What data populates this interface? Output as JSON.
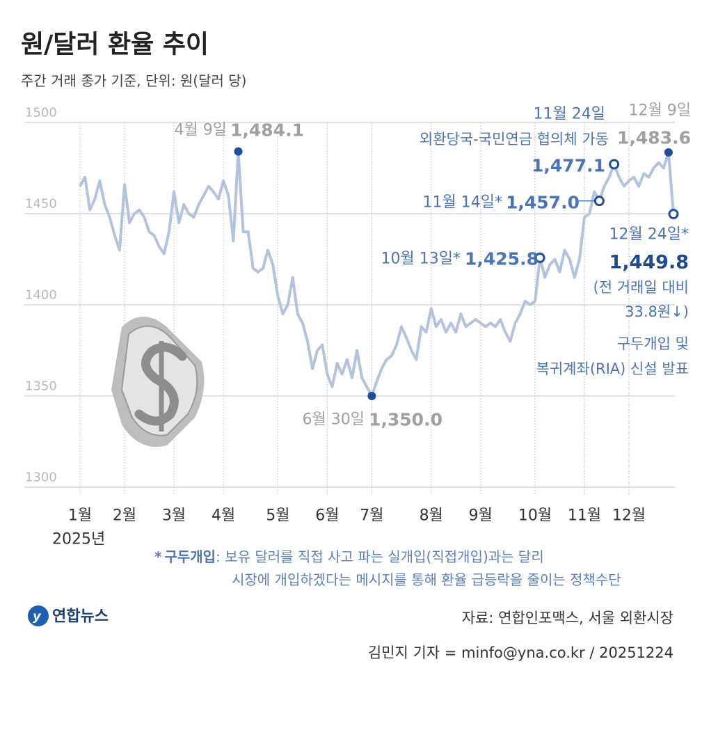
{
  "chart_data": {
    "type": "line",
    "title": "원/달러 환율 추이",
    "subtitle": "주간 거래 종가 기준, 단위: 원(달러 당)",
    "year_label": "2025년",
    "ylim": [
      1300,
      1500
    ],
    "yticks": [
      1300,
      1350,
      1400,
      1450,
      1500
    ],
    "grid": true,
    "color": "#b3c2de",
    "marker_color": "#1f4e9a",
    "categories": [
      "1월",
      null,
      null,
      null,
      null,
      null,
      null,
      null,
      null,
      "2월",
      null,
      null,
      null,
      null,
      null,
      null,
      null,
      null,
      null,
      "3월",
      null,
      null,
      null,
      null,
      null,
      null,
      null,
      null,
      null,
      "4월",
      null,
      null,
      null,
      null,
      null,
      null,
      null,
      null,
      null,
      null,
      "5월",
      null,
      null,
      null,
      null,
      null,
      null,
      null,
      null,
      null,
      "6월",
      null,
      null,
      null,
      null,
      null,
      null,
      null,
      null,
      "7월",
      null,
      null,
      null,
      null,
      null,
      null,
      null,
      null,
      null,
      null,
      null,
      "8월",
      null,
      null,
      null,
      null,
      null,
      null,
      null,
      null,
      null,
      "9월",
      null,
      null,
      null,
      null,
      null,
      null,
      null,
      null,
      null,
      null,
      "10월",
      null,
      null,
      null,
      null,
      null,
      null,
      null,
      null,
      null,
      "11월",
      null,
      null,
      null,
      null,
      null,
      null,
      null,
      null,
      "12월",
      null,
      null,
      null,
      null,
      null,
      null,
      null,
      null,
      null
    ],
    "values": [
      1465,
      1470,
      1452,
      1458,
      1468,
      1455,
      1448,
      1438,
      1430,
      1466,
      1445,
      1450,
      1452,
      1448,
      1440,
      1438,
      1432,
      1428,
      1440,
      1462,
      1445,
      1455,
      1450,
      1448,
      1455,
      1460,
      1465,
      1462,
      1458,
      1468,
      1460,
      1435,
      1484.1,
      1440,
      1440,
      1420,
      1418,
      1420,
      1430,
      1422,
      1405,
      1395,
      1400,
      1415,
      1395,
      1390,
      1380,
      1365,
      1375,
      1378,
      1362,
      1355,
      1368,
      1362,
      1370,
      1360,
      1375,
      1360,
      1355,
      1350,
      1358,
      1365,
      1370,
      1372,
      1378,
      1388,
      1382,
      1375,
      1370,
      1388,
      1385,
      1398,
      1388,
      1392,
      1385,
      1390,
      1385,
      1395,
      1388,
      1390,
      1392,
      1390,
      1388,
      1390,
      1388,
      1392,
      1385,
      1380,
      1390,
      1395,
      1402,
      1400,
      1402,
      1425.8,
      1415,
      1422,
      1425,
      1418,
      1430,
      1425,
      1415,
      1425,
      1448,
      1450,
      1462,
      1457.0,
      1465,
      1470,
      1477.1,
      1470,
      1465,
      1468,
      1470,
      1465,
      1472,
      1470,
      1475,
      1478,
      1475,
      1483.6,
      1449.8
    ],
    "value_labels": [
      null,
      null,
      null,
      null,
      null,
      null,
      null,
      null,
      null,
      null,
      null,
      null,
      null,
      null,
      null,
      null,
      null,
      null,
      null,
      null,
      null,
      null,
      null,
      null,
      null,
      null,
      null,
      null,
      null,
      null,
      null,
      null,
      "1,484.1",
      null,
      null,
      null,
      null,
      null,
      null,
      null,
      null,
      null,
      null,
      null,
      null,
      null,
      null,
      null,
      null,
      null,
      null,
      null,
      null,
      null,
      null,
      null,
      null,
      null,
      null,
      "1,350.0",
      null,
      null,
      null,
      null,
      null,
      null,
      null,
      null,
      null,
      null,
      null,
      null,
      null,
      null,
      null,
      null,
      null,
      null,
      null,
      null,
      null,
      null,
      null,
      null,
      null,
      null,
      null,
      null,
      null,
      null,
      null,
      null,
      null,
      "1,425.8",
      null,
      null,
      null,
      null,
      null,
      null,
      null,
      null,
      null,
      null,
      null,
      "1,457.0",
      null,
      null,
      "1,477.1",
      null,
      null,
      null,
      null,
      null,
      null,
      null,
      null,
      null,
      null,
      "1,483.6",
      "1,449.8"
    ],
    "point_dates": [
      null,
      null,
      null,
      null,
      null,
      null,
      null,
      null,
      null,
      null,
      null,
      null,
      null,
      null,
      null,
      null,
      null,
      null,
      null,
      null,
      null,
      null,
      null,
      null,
      null,
      null,
      null,
      null,
      null,
      null,
      null,
      null,
      "4월 9일",
      null,
      null,
      null,
      null,
      null,
      null,
      null,
      null,
      null,
      null,
      null,
      null,
      null,
      null,
      null,
      null,
      null,
      null,
      null,
      null,
      null,
      null,
      null,
      null,
      null,
      null,
      "6월 30일",
      null,
      null,
      null,
      null,
      null,
      null,
      null,
      null,
      null,
      null,
      null,
      null,
      null,
      null,
      null,
      null,
      null,
      null,
      null,
      null,
      null,
      null,
      null,
      null,
      null,
      null,
      null,
      null,
      null,
      null,
      null,
      null,
      null,
      "10월 13일*",
      null,
      null,
      null,
      null,
      null,
      null,
      null,
      null,
      null,
      null,
      null,
      "11월 14일*",
      null,
      null,
      "11월 24일",
      null,
      null,
      null,
      null,
      null,
      null,
      null,
      null,
      null,
      null,
      "12월 9일",
      "12월 24일*"
    ],
    "point_notes": [
      null,
      null,
      null,
      null,
      null,
      null,
      null,
      null,
      null,
      null,
      null,
      null,
      null,
      null,
      null,
      null,
      null,
      null,
      null,
      null,
      null,
      null,
      null,
      null,
      null,
      null,
      null,
      null,
      null,
      null,
      null,
      null,
      null,
      null,
      null,
      null,
      null,
      null,
      null,
      null,
      null,
      null,
      null,
      null,
      null,
      null,
      null,
      null,
      null,
      null,
      null,
      null,
      null,
      null,
      null,
      null,
      null,
      null,
      null,
      null,
      null,
      null,
      null,
      null,
      null,
      null,
      null,
      null,
      null,
      null,
      null,
      null,
      null,
      null,
      null,
      null,
      null,
      null,
      null,
      null,
      null,
      null,
      null,
      null,
      null,
      null,
      null,
      null,
      null,
      null,
      null,
      null,
      null,
      null,
      null,
      null,
      null,
      null,
      null,
      null,
      null,
      null,
      null,
      null,
      null,
      null,
      null,
      null,
      [
        "외환당국-국민연금 협의체 가동"
      ],
      null,
      null,
      null,
      null,
      null,
      null,
      null,
      null,
      null,
      null,
      null,
      [
        "(전 거래일 대비",
        "33.8원↓)",
        "구두개입 및",
        "복귀계좌(RIA) 신설 발표"
      ]
    ],
    "marker_kind": [
      null,
      null,
      null,
      null,
      null,
      null,
      null,
      null,
      null,
      null,
      null,
      null,
      null,
      null,
      null,
      null,
      null,
      null,
      null,
      null,
      null,
      null,
      null,
      null,
      null,
      null,
      null,
      null,
      null,
      null,
      null,
      null,
      "filled",
      null,
      null,
      null,
      null,
      null,
      null,
      null,
      null,
      null,
      null,
      null,
      null,
      null,
      null,
      null,
      null,
      null,
      null,
      null,
      null,
      null,
      null,
      null,
      null,
      null,
      null,
      "filled",
      null,
      null,
      null,
      null,
      null,
      null,
      null,
      null,
      null,
      null,
      null,
      null,
      null,
      null,
      null,
      null,
      null,
      null,
      null,
      null,
      null,
      null,
      null,
      null,
      null,
      null,
      null,
      null,
      null,
      null,
      null,
      null,
      null,
      "hollow",
      null,
      null,
      null,
      null,
      null,
      null,
      null,
      null,
      null,
      null,
      null,
      "hollow",
      null,
      null,
      "hollow",
      null,
      null,
      null,
      null,
      null,
      null,
      null,
      null,
      null,
      null,
      "filled",
      "hollow"
    ],
    "footnote": {
      "marker": "*",
      "term": "구두개입",
      "lines": [
        ": 보유 달러를 직접 사고 파는 실개입(직접개입)과는 달리",
        "시장에 개입하겠다는 메시지를 통해 환율 급등락을 줄이는 정책수단"
      ]
    },
    "logo": "연합뉴스",
    "source": "자료: 연합인포맥스, 서울 외환시장",
    "credit": "김민지 기자 = minfo@yna.co.kr / 20251224"
  }
}
